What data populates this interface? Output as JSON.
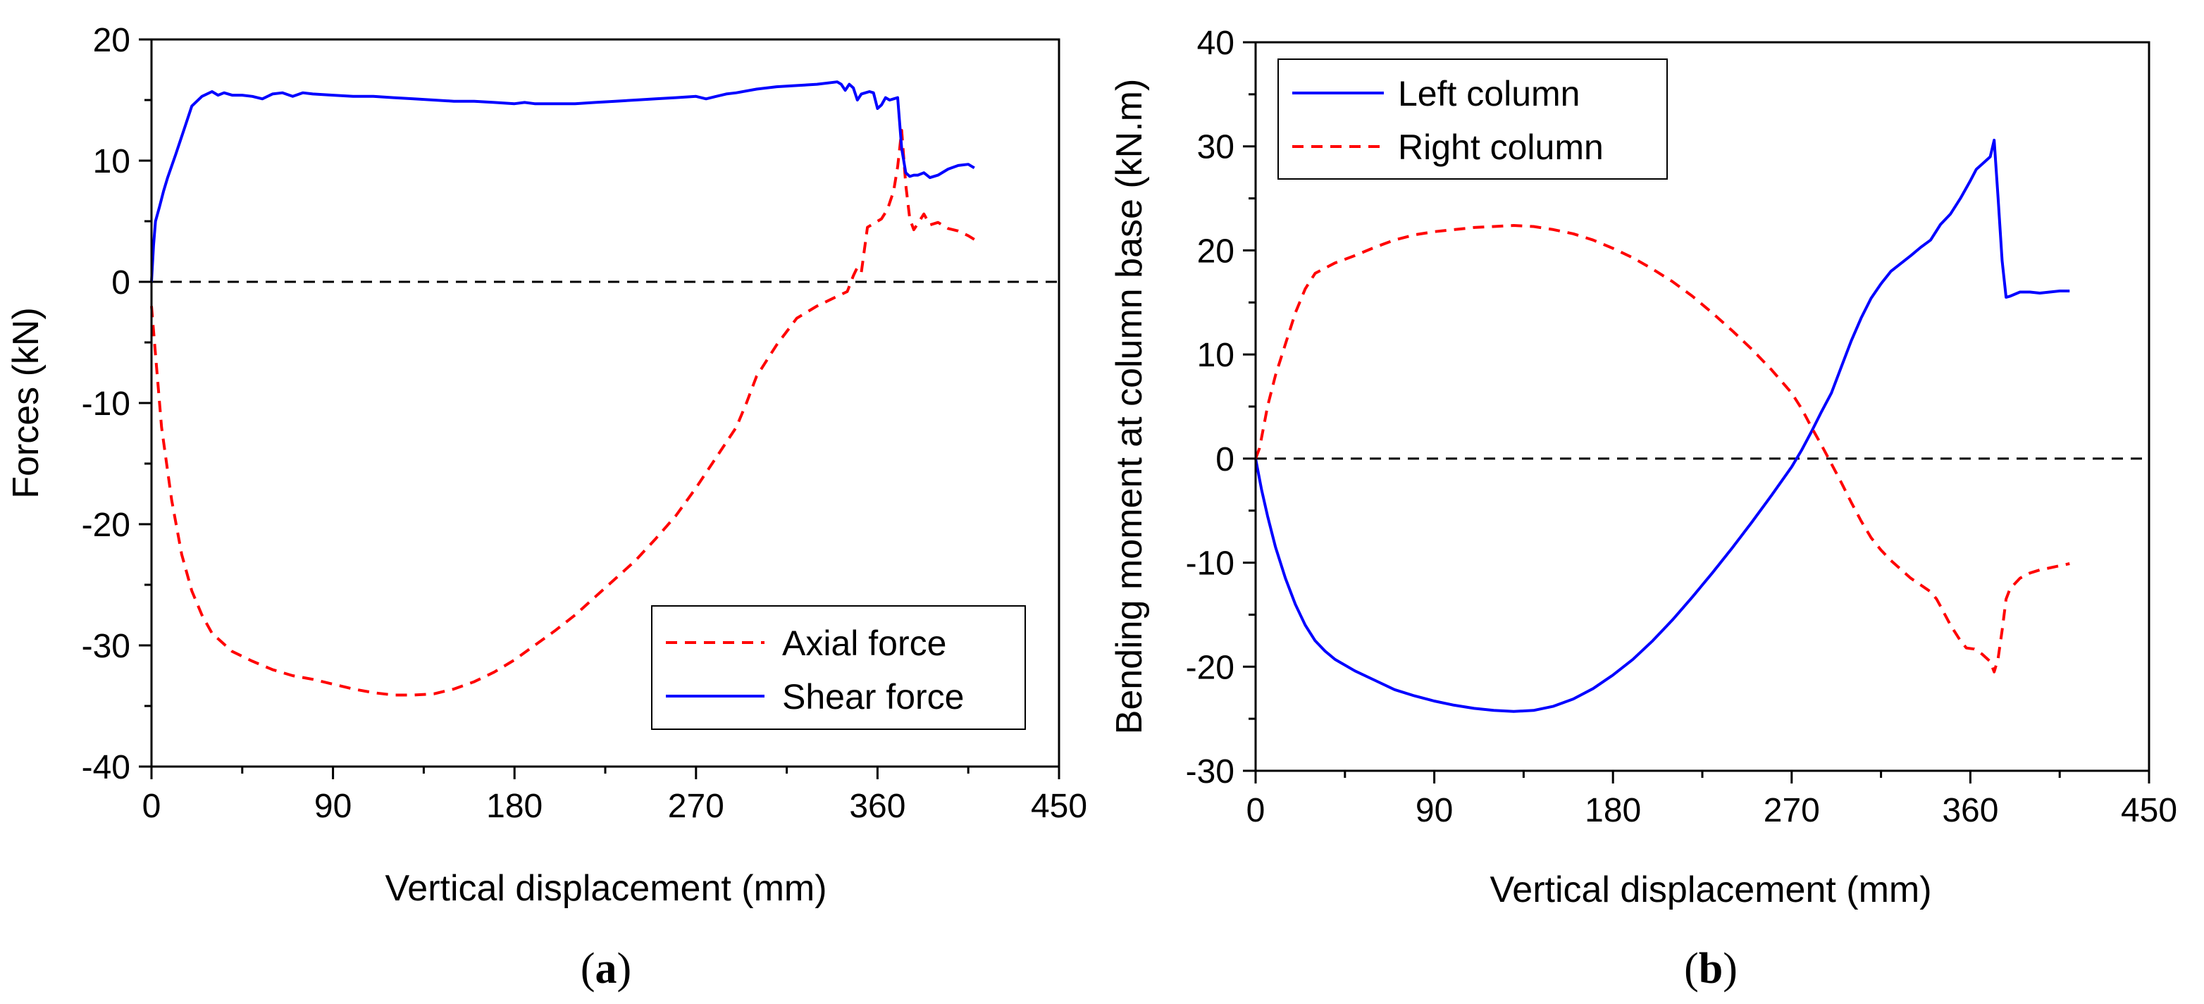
{
  "chart_data": [
    {
      "type": "line",
      "panel": "a",
      "caption_open": "(",
      "caption_letter": "a",
      "caption_close": ")",
      "xlabel": "Vertical displacement (mm)",
      "ylabel": "Forces (kN)",
      "xlim": [
        0,
        450
      ],
      "ylim": [
        -40,
        20
      ],
      "xticks": [
        0,
        90,
        180,
        270,
        360,
        450
      ],
      "yticks": [
        -40,
        -30,
        -20,
        -10,
        0,
        10,
        20
      ],
      "xminor": 45,
      "yminor": 5,
      "zero_line": true,
      "legend_position": "bottom-right",
      "series": [
        {
          "name": "Axial force",
          "color": "#ff0000",
          "style": "dashed",
          "x": [
            0,
            2,
            5,
            10,
            15,
            20,
            25,
            30,
            40,
            50,
            60,
            70,
            80,
            90,
            100,
            110,
            120,
            130,
            140,
            150,
            160,
            170,
            180,
            190,
            200,
            210,
            220,
            230,
            240,
            250,
            260,
            270,
            280,
            290,
            295,
            300,
            310,
            320,
            330,
            340,
            345,
            348,
            350,
            352,
            355,
            358,
            362,
            365,
            368,
            370,
            372,
            374,
            376,
            378,
            380,
            383,
            386,
            390,
            395,
            400,
            405,
            408
          ],
          "y": [
            -2,
            -6,
            -12,
            -18,
            -22.5,
            -25.5,
            -27.5,
            -29,
            -30.5,
            -31.3,
            -32,
            -32.5,
            -32.8,
            -33.2,
            -33.6,
            -33.9,
            -34.1,
            -34.1,
            -34,
            -33.6,
            -33,
            -32.2,
            -31.2,
            -30,
            -28.8,
            -27.5,
            -26,
            -24.5,
            -23,
            -21.2,
            -19.3,
            -17,
            -14.5,
            -12,
            -10,
            -7.8,
            -5.2,
            -3,
            -2,
            -1.2,
            -0.8,
            0.5,
            1.2,
            0.8,
            4.5,
            4.8,
            5.2,
            6,
            7.5,
            9.5,
            12.5,
            8,
            5.2,
            4.3,
            4.8,
            5.6,
            4.7,
            4.9,
            4.4,
            4.2,
            3.8,
            3.5
          ]
        },
        {
          "name": "Shear force",
          "color": "#0000ff",
          "style": "solid",
          "x": [
            0,
            1,
            2,
            4,
            6,
            8,
            12,
            16,
            20,
            25,
            30,
            33,
            36,
            40,
            45,
            50,
            55,
            60,
            65,
            70,
            75,
            80,
            90,
            100,
            110,
            120,
            130,
            140,
            150,
            160,
            170,
            180,
            185,
            190,
            200,
            210,
            220,
            230,
            240,
            250,
            260,
            270,
            275,
            280,
            285,
            290,
            300,
            310,
            320,
            330,
            340,
            342,
            344,
            346,
            348,
            350,
            352,
            354,
            356,
            358,
            360,
            362,
            364,
            366,
            368,
            370,
            372,
            374,
            376,
            378,
            380,
            383,
            386,
            390,
            395,
            400,
            405,
            408
          ],
          "y": [
            0,
            3,
            5,
            6.2,
            7.5,
            8.6,
            10.5,
            12.5,
            14.5,
            15.3,
            15.7,
            15.4,
            15.6,
            15.4,
            15.4,
            15.3,
            15.1,
            15.5,
            15.6,
            15.3,
            15.6,
            15.5,
            15.4,
            15.3,
            15.3,
            15.2,
            15.1,
            15,
            14.9,
            14.9,
            14.8,
            14.7,
            14.8,
            14.7,
            14.7,
            14.7,
            14.8,
            14.9,
            15,
            15.1,
            15.2,
            15.3,
            15.1,
            15.3,
            15.5,
            15.6,
            15.9,
            16.1,
            16.2,
            16.3,
            16.5,
            16.3,
            15.8,
            16.3,
            16,
            15,
            15.5,
            15.6,
            15.7,
            15.6,
            14.3,
            14.6,
            15.2,
            15,
            15.1,
            15.2,
            11,
            9,
            8.7,
            8.8,
            8.8,
            9,
            8.6,
            8.8,
            9.3,
            9.6,
            9.7,
            9.4
          ]
        }
      ]
    },
    {
      "type": "line",
      "panel": "b",
      "caption_open": "(",
      "caption_letter": "b",
      "caption_close": ")",
      "xlabel": "Vertical displacement (mm)",
      "ylabel": "Bending moment at column base (kN.m)",
      "xlim": [
        0,
        450
      ],
      "ylim": [
        -30,
        40
      ],
      "xticks": [
        0,
        90,
        180,
        270,
        360,
        450
      ],
      "yticks": [
        -30,
        -20,
        -10,
        0,
        10,
        20,
        30,
        40
      ],
      "xminor": 45,
      "yminor": 5,
      "zero_line": true,
      "legend_position": "top-left",
      "series": [
        {
          "name": "Left column",
          "color": "#0000ff",
          "style": "solid",
          "x": [
            0,
            3,
            6,
            10,
            15,
            20,
            25,
            30,
            35,
            40,
            50,
            60,
            70,
            80,
            90,
            100,
            110,
            120,
            130,
            140,
            150,
            160,
            170,
            180,
            190,
            200,
            210,
            220,
            230,
            240,
            250,
            260,
            270,
            275,
            280,
            285,
            290,
            295,
            300,
            305,
            310,
            315,
            320,
            330,
            335,
            340,
            345,
            350,
            355,
            360,
            363,
            366,
            370,
            372,
            374,
            376,
            378,
            380,
            385,
            390,
            395,
            400,
            405,
            410
          ],
          "y": [
            0,
            -3,
            -5.5,
            -8.5,
            -11.5,
            -14,
            -16,
            -17.5,
            -18.5,
            -19.3,
            -20.4,
            -21.3,
            -22.2,
            -22.8,
            -23.3,
            -23.7,
            -24,
            -24.2,
            -24.3,
            -24.2,
            -23.8,
            -23.1,
            -22.1,
            -20.8,
            -19.3,
            -17.5,
            -15.5,
            -13.3,
            -11,
            -8.6,
            -6.1,
            -3.5,
            -0.8,
            0.8,
            2.6,
            4.5,
            6.3,
            8.8,
            11.3,
            13.5,
            15.4,
            16.8,
            18,
            19.5,
            20.3,
            21,
            22.5,
            23.5,
            25,
            26.7,
            27.8,
            28.3,
            29,
            30.6,
            25,
            19,
            15.5,
            15.6,
            16,
            16,
            15.9,
            16,
            16.1,
            16.1
          ]
        },
        {
          "name": "Right column",
          "color": "#ff0000",
          "style": "dashed",
          "x": [
            0,
            2,
            4,
            6,
            10,
            15,
            20,
            25,
            30,
            40,
            50,
            60,
            70,
            80,
            90,
            100,
            110,
            120,
            130,
            140,
            150,
            160,
            170,
            180,
            190,
            200,
            210,
            220,
            230,
            240,
            250,
            260,
            270,
            275,
            280,
            285,
            290,
            295,
            300,
            305,
            310,
            315,
            320,
            330,
            340,
            343,
            345,
            350,
            355,
            358,
            362,
            366,
            370,
            372,
            374,
            376,
            378,
            380,
            385,
            390,
            395,
            400,
            405,
            410
          ],
          "y": [
            0,
            1,
            3,
            5,
            8,
            11,
            14,
            16.3,
            17.8,
            18.8,
            19.5,
            20.3,
            21,
            21.5,
            21.8,
            22,
            22.2,
            22.3,
            22.4,
            22.3,
            22,
            21.6,
            21,
            20.2,
            19.3,
            18.2,
            17,
            15.6,
            14,
            12.3,
            10.5,
            8.5,
            6.3,
            4.8,
            3,
            1.3,
            -0.5,
            -2.3,
            -4.2,
            -6,
            -7.6,
            -8.8,
            -9.8,
            -11.5,
            -12.8,
            -13.5,
            -14.2,
            -16,
            -17.5,
            -18.2,
            -18.3,
            -18.8,
            -19.5,
            -20.5,
            -19.2,
            -16.5,
            -13.5,
            -12.5,
            -11.5,
            -11,
            -10.7,
            -10.5,
            -10.3,
            -10.1
          ]
        }
      ]
    }
  ]
}
